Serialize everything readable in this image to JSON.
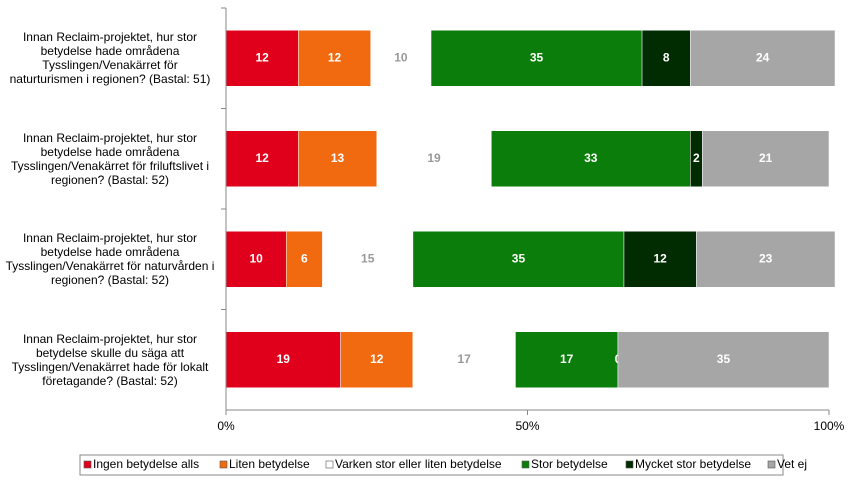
{
  "chart_data": {
    "type": "stacked-bar-horizontal",
    "categories": [
      "Innan Reclaim-projektet, hur stor betydelse hade områdena Tysslingen/Venakärret för naturturismen i regionen? (Bastal: 51)",
      "Innan Reclaim-projektet, hur stor betydelse hade områdena Tysslingen/Venakärret för friluftslivet i regionen? (Bastal: 52)",
      "Innan Reclaim-projektet, hur stor betydelse hade områdena Tysslingen/Venakärret för naturvården i regionen? (Bastal: 52)",
      "Innan Reclaim-projektet, hur stor betydelse skulle du säga att Tysslingen/Venakärret hade för lokalt företagande? (Bastal: 52)"
    ],
    "series": [
      {
        "name": "Ingen betydelse alls",
        "color": "#e0001b",
        "values": [
          12,
          12,
          10,
          19
        ]
      },
      {
        "name": "Liten betydelse",
        "color": "#f26a10",
        "values": [
          12,
          13,
          6,
          12
        ]
      },
      {
        "name": "Varken stor eller liten betydelse",
        "color": "#ffffff",
        "values": [
          10,
          19,
          15,
          17
        ]
      },
      {
        "name": "Stor betydelse",
        "color": "#0a7d0a",
        "values": [
          35,
          33,
          35,
          17
        ]
      },
      {
        "name": "Mycket stor betydelse",
        "color": "#012b01",
        "values": [
          8,
          2,
          12,
          0
        ]
      },
      {
        "name": "Vet ej",
        "color": "#a6a6a6",
        "values": [
          24,
          21,
          23,
          35
        ]
      }
    ],
    "xlim": [
      0,
      100
    ],
    "xticks": [
      {
        "value": 0,
        "label": "0%"
      },
      {
        "value": 50,
        "label": "50%"
      },
      {
        "value": 100,
        "label": "100%"
      }
    ],
    "legend": "bottom"
  }
}
